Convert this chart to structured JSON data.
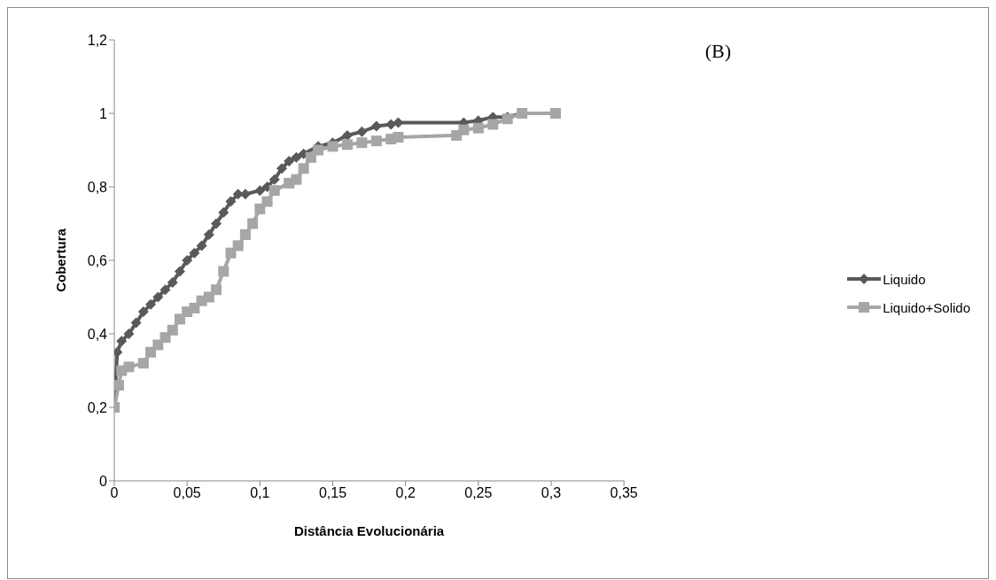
{
  "chart_data": {
    "type": "line",
    "xlabel": "Distância Evolucionária",
    "ylabel": "Cobertura",
    "annotations": [
      "(B)"
    ],
    "xlim": [
      0,
      0.35
    ],
    "xticks": [
      {
        "value": 0,
        "label": "0"
      },
      {
        "value": 0.05,
        "label": "0,05"
      },
      {
        "value": 0.1,
        "label": "0,1"
      },
      {
        "value": 0.15,
        "label": "0,15"
      },
      {
        "value": 0.2,
        "label": "0,2"
      },
      {
        "value": 0.25,
        "label": "0,25"
      },
      {
        "value": 0.3,
        "label": "0,3"
      },
      {
        "value": 0.35,
        "label": "0,35"
      }
    ],
    "ylim": [
      0,
      1.2
    ],
    "yticks": [
      {
        "value": 0,
        "label": "0"
      },
      {
        "value": 0.2,
        "label": "0,2"
      },
      {
        "value": 0.4,
        "label": "0,4"
      },
      {
        "value": 0.6,
        "label": "0,6"
      },
      {
        "value": 0.8,
        "label": "0,8"
      },
      {
        "value": 1,
        "label": "1"
      },
      {
        "value": 1.2,
        "label": "1,2"
      }
    ],
    "grid": false,
    "legend": "right",
    "line_style": "solid",
    "series": [
      {
        "name": "Liquido",
        "color": "#595959",
        "marker": "diamond",
        "x": [
          0,
          0.002,
          0.005,
          0.01,
          0.015,
          0.02,
          0.025,
          0.03,
          0.035,
          0.04,
          0.045,
          0.05,
          0.055,
          0.06,
          0.065,
          0.07,
          0.075,
          0.08,
          0.085,
          0.09,
          0.1,
          0.105,
          0.11,
          0.115,
          0.12,
          0.125,
          0.13,
          0.14,
          0.15,
          0.16,
          0.17,
          0.18,
          0.19,
          0.195,
          0.24,
          0.25,
          0.26,
          0.27,
          0.28,
          0.303
        ],
        "values": [
          0.2,
          0.35,
          0.38,
          0.4,
          0.43,
          0.46,
          0.48,
          0.5,
          0.52,
          0.54,
          0.57,
          0.6,
          0.62,
          0.64,
          0.67,
          0.7,
          0.73,
          0.76,
          0.78,
          0.78,
          0.79,
          0.8,
          0.82,
          0.85,
          0.87,
          0.88,
          0.89,
          0.91,
          0.92,
          0.94,
          0.95,
          0.965,
          0.97,
          0.975,
          0.975,
          0.98,
          0.99,
          0.99,
          1.0,
          1.0
        ]
      },
      {
        "name": "Liquido+Solido",
        "color": "#a6a6a6",
        "marker": "square",
        "x": [
          0,
          0.003,
          0.005,
          0.01,
          0.02,
          0.025,
          0.03,
          0.035,
          0.04,
          0.045,
          0.05,
          0.055,
          0.06,
          0.065,
          0.07,
          0.075,
          0.08,
          0.085,
          0.09,
          0.095,
          0.1,
          0.105,
          0.11,
          0.12,
          0.125,
          0.13,
          0.135,
          0.14,
          0.15,
          0.16,
          0.17,
          0.18,
          0.19,
          0.195,
          0.235,
          0.24,
          0.25,
          0.26,
          0.27,
          0.28,
          0.303
        ],
        "values": [
          0.2,
          0.26,
          0.3,
          0.31,
          0.32,
          0.35,
          0.37,
          0.39,
          0.41,
          0.44,
          0.46,
          0.47,
          0.49,
          0.5,
          0.52,
          0.57,
          0.62,
          0.64,
          0.67,
          0.7,
          0.74,
          0.76,
          0.79,
          0.81,
          0.82,
          0.85,
          0.88,
          0.9,
          0.91,
          0.915,
          0.92,
          0.925,
          0.93,
          0.935,
          0.94,
          0.955,
          0.96,
          0.97,
          0.985,
          1.0,
          1.0
        ]
      }
    ]
  }
}
